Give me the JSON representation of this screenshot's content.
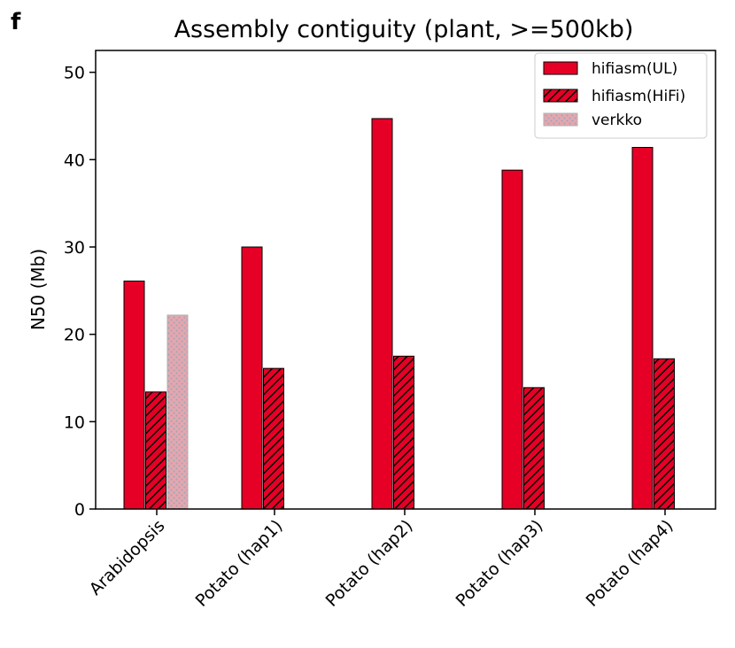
{
  "panel_label": "f",
  "colors": {
    "ul": "#e60026",
    "hifi": "#e60026",
    "verkko": "#e6a6ae",
    "verkko_dot": "#a0a8b8",
    "edge": "#000000"
  },
  "chart_data": {
    "type": "bar",
    "title": "Assembly contiguity (plant, >=500kb)",
    "xlabel": "",
    "ylabel": "N50 (Mb)",
    "ylim": [
      0,
      52.5
    ],
    "yticks": [
      0,
      10,
      20,
      30,
      40,
      50
    ],
    "grid": false,
    "legend_position": "top-right",
    "categories": [
      "Arabidopsis",
      "Potato (hap1)",
      "Potato (hap2)",
      "Potato (hap3)",
      "Potato (hap4)"
    ],
    "series": [
      {
        "name": "hifiasm(UL)",
        "values": [
          26.1,
          30.0,
          44.7,
          38.8,
          41.4
        ]
      },
      {
        "name": "hifiasm(HiFi)",
        "values": [
          13.4,
          16.1,
          17.5,
          13.9,
          17.2
        ]
      },
      {
        "name": "verkko",
        "values": [
          22.2,
          null,
          null,
          null,
          null
        ]
      }
    ]
  }
}
